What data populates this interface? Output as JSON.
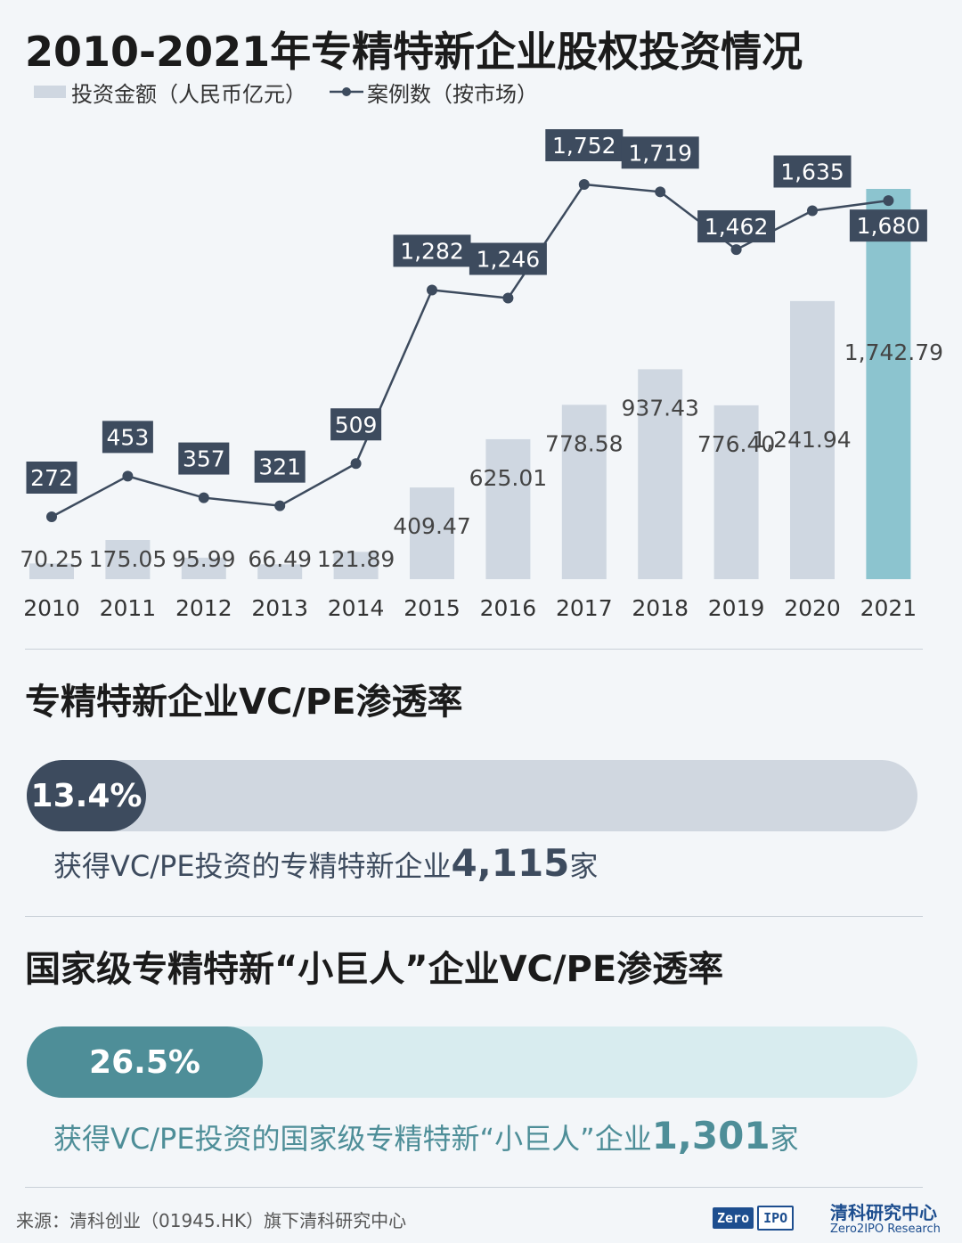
{
  "title": "2010-2021年专精特新企业股权投资情况",
  "legend": {
    "bar_label": "投资金额（人民币亿元）",
    "line_label": "案例数（按市场）"
  },
  "chart_data": {
    "type": "bar+line",
    "categories": [
      "2010",
      "2011",
      "2012",
      "2013",
      "2014",
      "2015",
      "2016",
      "2017",
      "2018",
      "2019",
      "2020",
      "2021"
    ],
    "series": [
      {
        "name": "投资金额（人民币亿元）",
        "type": "bar",
        "values": [
          70.25,
          175.05,
          95.99,
          66.49,
          121.89,
          409.47,
          625.01,
          778.58,
          937.43,
          776.4,
          1241.94,
          1742.79
        ],
        "labels": [
          "70.25",
          "175.05",
          "95.99",
          "66.49",
          "121.89",
          "409.47",
          "625.01",
          "778.58",
          "937.43",
          "776.40",
          "1,241.94",
          "1,742.79"
        ],
        "color": "#cfd7e1",
        "highlight_color": "#8cc4cf",
        "highlight_index": 11
      },
      {
        "name": "案例数（按市场）",
        "type": "line",
        "values": [
          272,
          453,
          357,
          321,
          509,
          1282,
          1246,
          1752,
          1719,
          1462,
          1635,
          1680
        ],
        "labels": [
          "272",
          "453",
          "357",
          "321",
          "509",
          "1,282",
          "1,246",
          "1,752",
          "1,719",
          "1,462",
          "1,635",
          "1,680"
        ],
        "color": "#3d4b5e"
      }
    ],
    "legend_position": "top-left",
    "grid": false
  },
  "section1": {
    "title": "专精特新企业VC/PE渗透率",
    "rate_label": "13.4%",
    "rate": 0.134,
    "note_prefix": "获得VC/PE投资的专精特新企业",
    "note_number": "4,115",
    "note_suffix": "家",
    "track_color": "#d0d7e0",
    "fill_color": "#3d4b5e",
    "text_color": "#3d4b5e"
  },
  "section2": {
    "title": "国家级专精特新“小巨人”企业VC/PE渗透率",
    "rate_label": "26.5%",
    "rate": 0.265,
    "note_prefix": "获得VC/PE投资的国家级专精特新“小巨人”企业",
    "note_number": "1,301",
    "note_suffix": "家",
    "track_color": "#d8ecef",
    "fill_color": "#4e8e98",
    "text_color": "#4e8e98"
  },
  "footer": {
    "source": "来源：清科创业（01945.HK）旗下清科研究中心",
    "logo_left": "Zero",
    "logo_right": "IPO",
    "brand_cn": "清科研究中心",
    "brand_en": "Zero2IPO Research"
  }
}
